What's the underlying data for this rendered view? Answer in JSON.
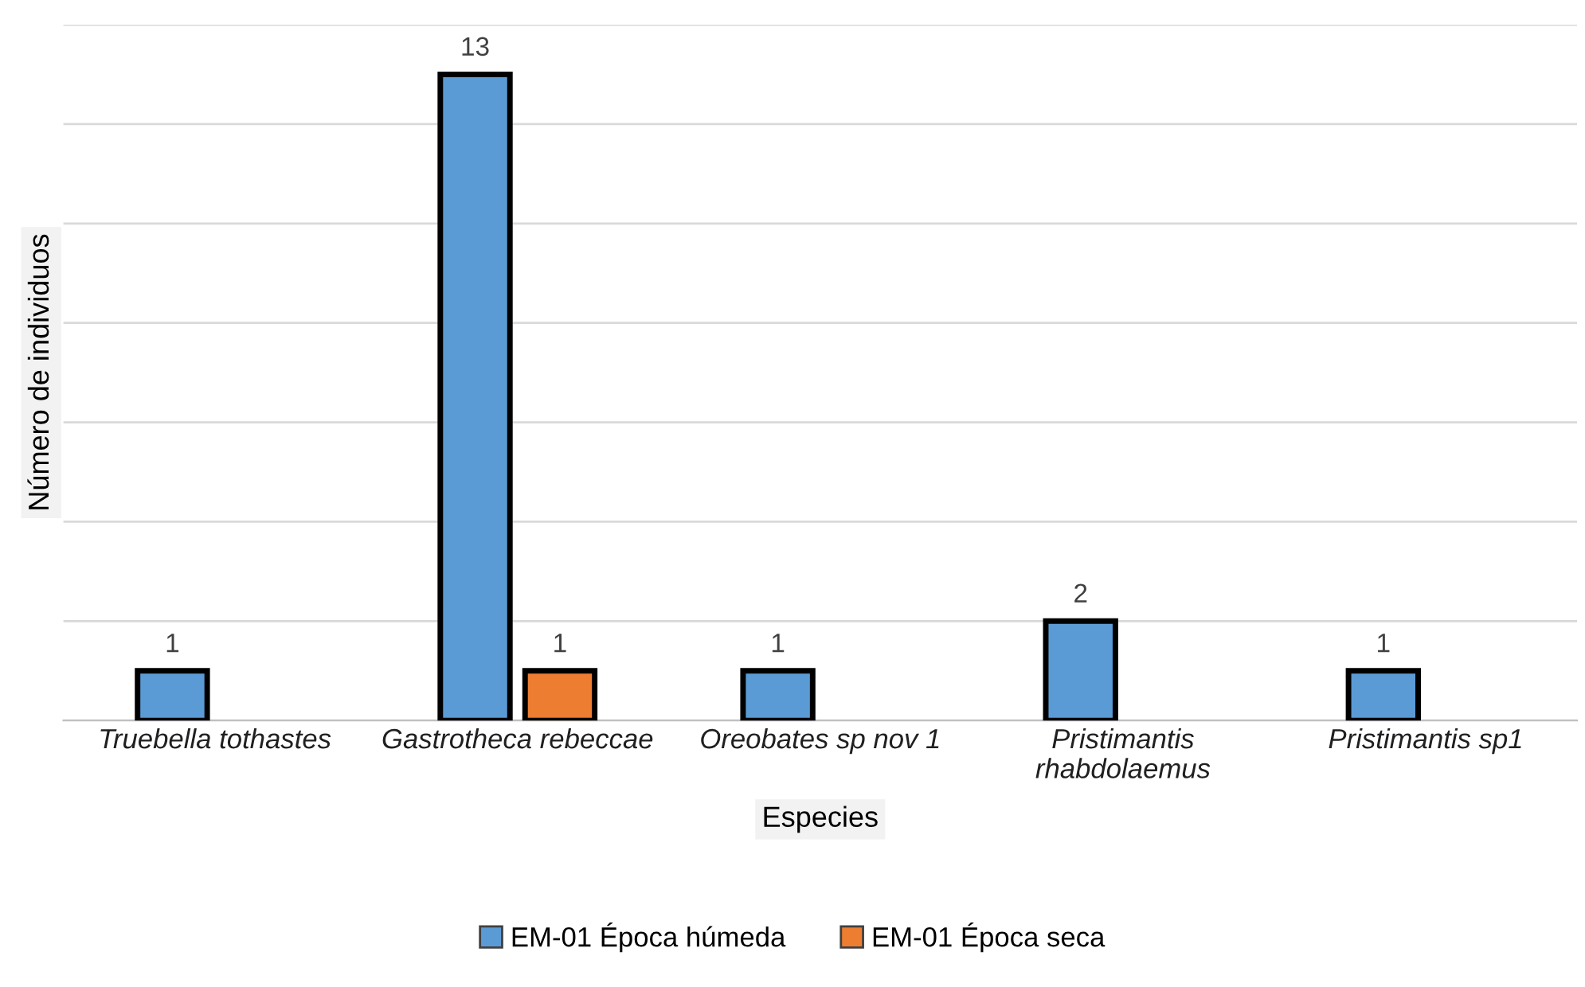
{
  "chart_data": {
    "type": "bar",
    "xlabel": "Especies",
    "ylabel": "Número de individuos",
    "categories": [
      "Truebella tothastes",
      "Gastrotheca rebeccae",
      "Oreobates sp nov 1",
      "Pristimantis rhabdolaemus",
      "Pristimantis sp1"
    ],
    "series": [
      {
        "name": "EM-01 Época húmeda",
        "color": "#5b9bd5",
        "values": [
          1,
          13,
          1,
          2,
          1
        ]
      },
      {
        "name": "EM-01 Época seca",
        "color": "#ed7d31",
        "values": [
          null,
          1,
          null,
          null,
          null
        ]
      }
    ],
    "ylim": [
      0,
      14
    ],
    "yticks": [
      {
        "value": 0,
        "label": null
      },
      {
        "value": 2,
        "label": null
      },
      {
        "value": 4,
        "label": null
      },
      {
        "value": 6,
        "label": null
      },
      {
        "value": 8,
        "label": null
      },
      {
        "value": 10,
        "label": null
      },
      {
        "value": 12,
        "label": null
      },
      {
        "value": 14,
        "label": null
      }
    ],
    "tick_labels": "x",
    "grid": "y",
    "legend": "bottom",
    "data_labels": true
  }
}
